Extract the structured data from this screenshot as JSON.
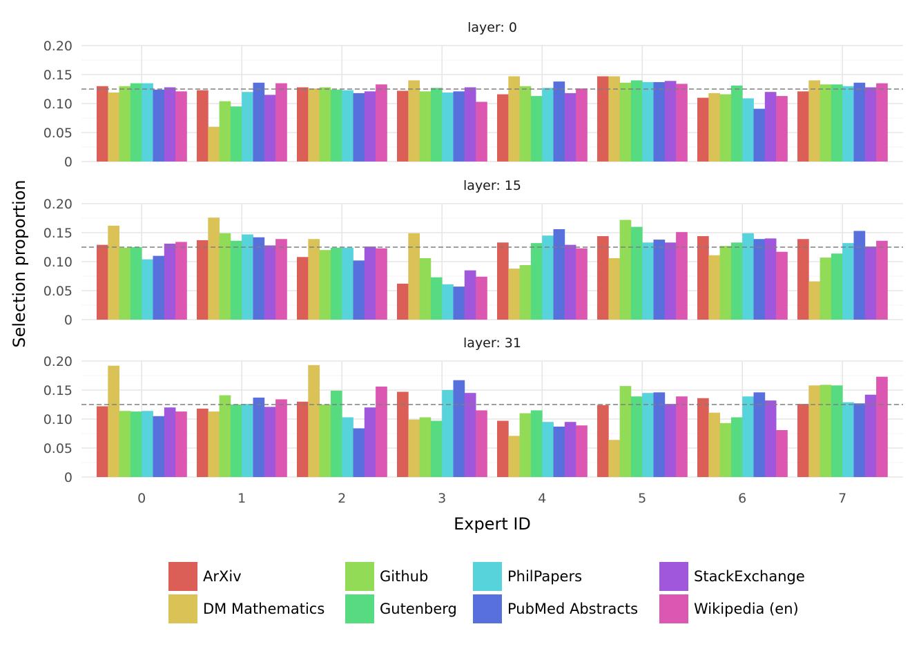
{
  "chart_data": {
    "type": "bar",
    "xlabel": "Expert ID",
    "ylabel": "Selection proportion",
    "categories": [
      "0",
      "1",
      "2",
      "3",
      "4",
      "5",
      "6",
      "7"
    ],
    "ylim": [
      0,
      0.2
    ],
    "yticks": [
      0,
      0.05,
      0.1,
      0.15,
      0.2
    ],
    "ytick_labels": [
      "0",
      "0.05",
      "0.10",
      "0.15",
      "0.20"
    ],
    "reference_line": 0.125,
    "grid": true,
    "legend_position": "bottom",
    "colors": [
      "#db5f57",
      "#dbc257",
      "#91db57",
      "#57db80",
      "#57d3db",
      "#5770db",
      "#a157db",
      "#db57b2"
    ],
    "legend": [
      "ArXiv",
      "DM Mathematics",
      "Github",
      "Gutenberg",
      "PhilPapers",
      "PubMed Abstracts",
      "StackExchange",
      "Wikipedia (en)"
    ],
    "panels": [
      {
        "title": "layer: 0",
        "series": [
          {
            "name": "ArXiv",
            "values": [
              0.13,
              0.123,
              0.128,
              0.122,
              0.116,
              0.147,
              0.11,
              0.121
            ]
          },
          {
            "name": "DM Mathematics",
            "values": [
              0.119,
              0.06,
              0.126,
              0.14,
              0.147,
              0.147,
              0.118,
              0.14
            ]
          },
          {
            "name": "Github",
            "values": [
              0.13,
              0.104,
              0.128,
              0.121,
              0.13,
              0.136,
              0.116,
              0.133
            ]
          },
          {
            "name": "Gutenberg",
            "values": [
              0.135,
              0.095,
              0.124,
              0.127,
              0.113,
              0.14,
              0.131,
              0.133
            ]
          },
          {
            "name": "PhilPapers",
            "values": [
              0.135,
              0.12,
              0.123,
              0.119,
              0.127,
              0.137,
              0.109,
              0.13
            ]
          },
          {
            "name": "PubMed Abstracts",
            "values": [
              0.124,
              0.136,
              0.118,
              0.121,
              0.138,
              0.137,
              0.091,
              0.136
            ]
          },
          {
            "name": "StackExchange",
            "values": [
              0.128,
              0.115,
              0.121,
              0.128,
              0.118,
              0.139,
              0.12,
              0.128
            ]
          },
          {
            "name": "Wikipedia (en)",
            "values": [
              0.121,
              0.135,
              0.133,
              0.103,
              0.126,
              0.134,
              0.113,
              0.135
            ]
          }
        ]
      },
      {
        "title": "layer: 15",
        "series": [
          {
            "name": "ArXiv",
            "values": [
              0.129,
              0.137,
              0.108,
              0.062,
              0.133,
              0.144,
              0.144,
              0.139
            ]
          },
          {
            "name": "DM Mathematics",
            "values": [
              0.162,
              0.176,
              0.139,
              0.149,
              0.088,
              0.106,
              0.111,
              0.066
            ]
          },
          {
            "name": "Github",
            "values": [
              0.124,
              0.149,
              0.12,
              0.106,
              0.094,
              0.172,
              0.127,
              0.107
            ]
          },
          {
            "name": "Gutenberg",
            "values": [
              0.125,
              0.136,
              0.124,
              0.073,
              0.132,
              0.16,
              0.133,
              0.114
            ]
          },
          {
            "name": "PhilPapers",
            "values": [
              0.104,
              0.147,
              0.124,
              0.061,
              0.145,
              0.133,
              0.149,
              0.132
            ]
          },
          {
            "name": "PubMed Abstracts",
            "values": [
              0.11,
              0.142,
              0.102,
              0.057,
              0.156,
              0.138,
              0.139,
              0.153
            ]
          },
          {
            "name": "StackExchange",
            "values": [
              0.131,
              0.128,
              0.126,
              0.085,
              0.129,
              0.133,
              0.14,
              0.126
            ]
          },
          {
            "name": "Wikipedia (en)",
            "values": [
              0.134,
              0.139,
              0.123,
              0.074,
              0.123,
              0.151,
              0.117,
              0.136
            ]
          }
        ]
      },
      {
        "title": "layer: 31",
        "series": [
          {
            "name": "ArXiv",
            "values": [
              0.122,
              0.118,
              0.13,
              0.147,
              0.097,
              0.124,
              0.136,
              0.126
            ]
          },
          {
            "name": "DM Mathematics",
            "values": [
              0.192,
              0.113,
              0.193,
              0.099,
              0.071,
              0.064,
              0.111,
              0.158
            ]
          },
          {
            "name": "Github",
            "values": [
              0.114,
              0.141,
              0.125,
              0.103,
              0.11,
              0.157,
              0.093,
              0.159
            ]
          },
          {
            "name": "Gutenberg",
            "values": [
              0.113,
              0.125,
              0.149,
              0.097,
              0.115,
              0.139,
              0.103,
              0.158
            ]
          },
          {
            "name": "PhilPapers",
            "values": [
              0.114,
              0.126,
              0.103,
              0.15,
              0.095,
              0.145,
              0.139,
              0.129
            ]
          },
          {
            "name": "PubMed Abstracts",
            "values": [
              0.105,
              0.137,
              0.084,
              0.167,
              0.087,
              0.146,
              0.146,
              0.127
            ]
          },
          {
            "name": "StackExchange",
            "values": [
              0.12,
              0.121,
              0.12,
              0.145,
              0.095,
              0.126,
              0.132,
              0.142
            ]
          },
          {
            "name": "Wikipedia (en)",
            "values": [
              0.113,
              0.134,
              0.156,
              0.115,
              0.089,
              0.139,
              0.081,
              0.173
            ]
          }
        ]
      }
    ]
  }
}
